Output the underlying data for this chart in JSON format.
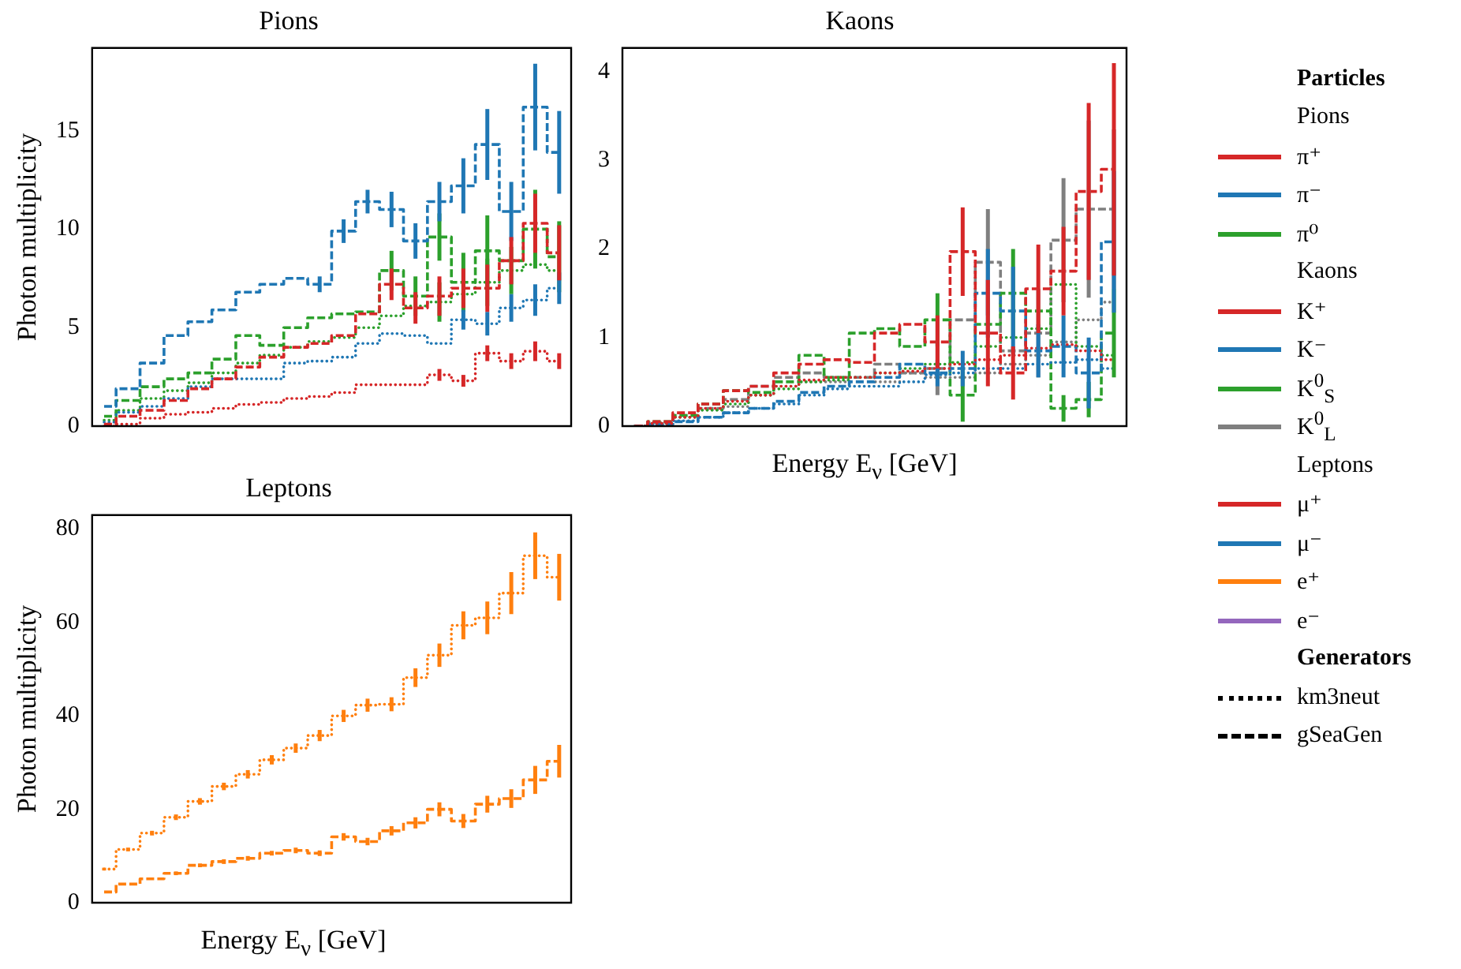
{
  "chart_data": [
    {
      "type": "step",
      "title": "Pions",
      "ylabel": "Photon multiplicity",
      "legend_title": "Particles",
      "legend": "right",
      "tick_labels": "y",
      "categories": [
        null,
        null,
        null,
        null,
        null,
        null,
        null,
        null,
        null,
        null,
        null,
        null,
        null,
        null,
        null,
        null,
        null,
        null,
        null,
        null
      ],
      "ylim": [
        0,
        19.2
      ],
      "yticks": [
        0,
        5,
        10,
        15
      ],
      "series": [
        {
          "name": "π⁺",
          "color": "#d62728",
          "line_style": "dotted",
          "values": [
            0,
            0.1,
            0.4,
            0.6,
            0.7,
            0.9,
            1.1,
            1.2,
            1.4,
            1.5,
            1.7,
            2.1,
            2.1,
            2.1,
            2.6,
            2.3,
            3.7,
            3.3,
            3.8,
            3.3
          ],
          "errors": [
            null,
            null,
            null,
            null,
            null,
            null,
            null,
            null,
            null,
            null,
            null,
            null,
            null,
            null,
            0.3,
            0.3,
            0.4,
            0.4,
            0.5,
            0.4
          ]
        },
        {
          "color": "#d62728",
          "line_style": "dashed",
          "values": [
            0.1,
            0.5,
            0.8,
            1.3,
            1.9,
            2.4,
            3.0,
            3.5,
            4.0,
            4.2,
            4.6,
            5.7,
            7.2,
            6.0,
            6.6,
            7.0,
            7.0,
            8.4,
            10.3,
            8.8
          ],
          "errors": [
            null,
            null,
            null,
            null,
            null,
            null,
            null,
            null,
            null,
            null,
            null,
            null,
            0.8,
            0.8,
            1.0,
            1.0,
            1.2,
            1.2,
            1.5,
            1.4
          ]
        },
        {
          "name": "π⁻",
          "color": "#1f77b4",
          "line_style": "dotted",
          "values": [
            0.2,
            0.7,
            1.0,
            1.4,
            2.0,
            2.4,
            2.4,
            2.4,
            3.2,
            3.3,
            3.5,
            4.2,
            4.7,
            4.6,
            4.2,
            5.4,
            5.2,
            6.0,
            6.4,
            7.0
          ],
          "errors": [
            null,
            null,
            null,
            null,
            null,
            null,
            null,
            null,
            null,
            null,
            null,
            null,
            null,
            null,
            null,
            0.5,
            0.6,
            0.7,
            0.8,
            0.8
          ]
        },
        {
          "color": "#1f77b4",
          "line_style": "dashed",
          "values": [
            1.0,
            1.9,
            3.2,
            4.6,
            5.3,
            5.9,
            6.8,
            7.2,
            7.5,
            7.2,
            9.9,
            11.4,
            11.0,
            9.4,
            11.4,
            12.2,
            14.3,
            10.9,
            16.2,
            13.9
          ],
          "errors": [
            null,
            null,
            null,
            null,
            null,
            null,
            null,
            null,
            null,
            0.4,
            0.6,
            0.6,
            0.9,
            0.9,
            1.0,
            1.4,
            1.8,
            1.5,
            2.2,
            2.1
          ]
        },
        {
          "name": "π⁰",
          "color": "#2ca02c",
          "line_style": "dotted",
          "values": [
            0.3,
            0.8,
            1.4,
            1.8,
            2.2,
            2.7,
            3.2,
            3.6,
            4.0,
            4.3,
            4.5,
            5.0,
            5.6,
            6.1,
            6.3,
            6.7,
            7.3,
            7.9,
            8.2,
            7.9
          ],
          "errors": [
            null,
            null,
            null,
            null,
            null,
            null,
            null,
            null,
            null,
            null,
            null,
            null,
            null,
            null,
            1.0,
            null,
            1.2,
            1.2,
            null,
            null
          ]
        },
        {
          "color": "#2ca02c",
          "line_style": "dashed",
          "values": [
            0.5,
            1.3,
            2.0,
            2.4,
            2.7,
            3.4,
            4.6,
            4.1,
            5.0,
            5.5,
            5.7,
            5.8,
            7.9,
            6.6,
            9.6,
            7.3,
            8.9,
            8.4,
            10.0,
            8.6
          ],
          "errors": [
            null,
            null,
            null,
            null,
            null,
            null,
            null,
            null,
            null,
            null,
            null,
            null,
            1.0,
            1.0,
            1.2,
            1.5,
            1.8,
            null,
            2.0,
            1.8
          ]
        }
      ]
    },
    {
      "type": "step",
      "title": "Kaons",
      "xlabel": "Energy E$_{ν}$ [GeV]",
      "legend": "right",
      "tick_labels": "y",
      "categories": [
        null,
        null,
        null,
        null,
        null,
        null,
        null,
        null,
        null,
        null,
        null,
        null,
        null,
        null,
        null,
        null,
        null,
        null,
        null,
        null
      ],
      "ylim": [
        0,
        4.27
      ],
      "yticks": [
        0,
        1,
        2,
        3,
        4
      ],
      "series": [
        {
          "name": "K⁺",
          "color": "#d62728",
          "line_style": "dotted",
          "values": [
            0.0,
            0.03,
            0.1,
            0.2,
            0.28,
            0.35,
            0.45,
            0.52,
            0.55,
            0.55,
            0.6,
            0.62,
            0.65,
            0.7,
            0.75,
            0.8,
            0.88,
            0.92,
            0.85,
            0.75
          ]
        },
        {
          "color": "#d62728",
          "line_style": "dashed",
          "values": [
            0.0,
            0.05,
            0.15,
            0.25,
            0.4,
            0.45,
            0.6,
            0.7,
            0.75,
            0.72,
            1.05,
            1.15,
            0.95,
            1.97,
            1.05,
            0.6,
            1.55,
            1.75,
            2.65,
            2.9
          ],
          "errors": [
            null,
            null,
            null,
            null,
            null,
            null,
            null,
            null,
            null,
            null,
            null,
            null,
            0.3,
            0.5,
            0.6,
            0.3,
            0.5,
            0.5,
            1.0,
            1.2
          ]
        },
        {
          "name": "K⁻",
          "color": "#1f77b4",
          "line_style": "dotted",
          "values": [
            0,
            0.02,
            0.06,
            0.1,
            0.15,
            0.2,
            0.25,
            0.35,
            0.42,
            0.45,
            0.45,
            0.5,
            0.58,
            0.6,
            0.65,
            0.65,
            0.7,
            0.72,
            0.75,
            0.65
          ]
        },
        {
          "color": "#1f77b4",
          "line_style": "dashed",
          "values": [
            0,
            0.02,
            0.05,
            0.1,
            0.15,
            0.2,
            0.28,
            0.38,
            0.45,
            0.5,
            0.55,
            0.7,
            0.6,
            0.65,
            1.5,
            1.3,
            0.85,
            0.9,
            0.6,
            2.08
          ],
          "errors": [
            null,
            null,
            null,
            null,
            null,
            null,
            null,
            null,
            null,
            null,
            null,
            null,
            0.15,
            0.2,
            0.5,
            0.5,
            0.3,
            0.35,
            0.4,
            0.8
          ]
        },
        {
          "name": "K$^{0}$$_{S}$",
          "color": "#2ca02c",
          "line_style": "dotted",
          "values": [
            0,
            0.03,
            0.1,
            0.18,
            0.25,
            0.35,
            0.42,
            0.5,
            0.52,
            0.55,
            0.6,
            0.65,
            0.7,
            0.72,
            0.9,
            1.0,
            1.1,
            1.6,
            0.9,
            0.8
          ]
        },
        {
          "color": "#2ca02c",
          "line_style": "dashed",
          "values": [
            0,
            0.05,
            0.12,
            0.25,
            0.4,
            0.38,
            0.5,
            0.8,
            0.55,
            1.05,
            1.1,
            0.9,
            1.2,
            0.35,
            1.15,
            1.5,
            1.3,
            0.2,
            0.3,
            1.05
          ],
          "errors": [
            null,
            null,
            null,
            null,
            null,
            null,
            null,
            null,
            null,
            null,
            null,
            null,
            0.3,
            0.3,
            null,
            0.5,
            null,
            0.15,
            0.2,
            0.5
          ]
        },
        {
          "name": "K$^{0}$$_{L}$",
          "color": "#7f7f7f",
          "line_style": "dotted",
          "values": [
            0,
            0.03,
            0.1,
            0.18,
            0.22,
            0.35,
            0.45,
            0.5,
            0.5,
            0.55,
            0.5,
            0.6,
            0.55,
            0.55,
            0.6,
            0.7,
            0.8,
            0.95,
            1.2,
            1.4
          ]
        },
        {
          "color": "#7f7f7f",
          "line_style": "dashed",
          "values": [
            0,
            0.04,
            0.12,
            0.2,
            0.3,
            0.45,
            0.55,
            0.6,
            0.55,
            0.55,
            0.7,
            0.6,
            0.65,
            1.2,
            1.85,
            0.85,
            1.05,
            2.1,
            2.45,
            2.45
          ],
          "errors": [
            null,
            null,
            null,
            null,
            null,
            null,
            null,
            null,
            null,
            null,
            null,
            null,
            0.3,
            null,
            0.6,
            null,
            0.5,
            0.7,
            1.0,
            0.9
          ]
        }
      ]
    },
    {
      "type": "step",
      "title": "Leptons",
      "xlabel": "Energy E$_{ν}$ [GeV]",
      "ylabel": "Photon multiplicity",
      "legend": "right",
      "tick_labels": "y",
      "annotations": [
        "Generators",
        "km3neut",
        "gSeaGen"
      ],
      "categories": [
        null,
        null,
        null,
        null,
        null,
        null,
        null,
        null,
        null,
        null,
        null,
        null,
        null,
        null,
        null,
        null,
        null,
        null,
        null,
        null
      ],
      "ylim": [
        0,
        83
      ],
      "yticks": [
        0,
        20,
        40,
        60,
        80
      ],
      "series": [
        {
          "name": "μ⁺",
          "color": "#d62728",
          "line_style": "dotted",
          "values": [
            null,
            null,
            null,
            null,
            null,
            null,
            null,
            null,
            null,
            null,
            null,
            null,
            null,
            null,
            null,
            null,
            null,
            null,
            null,
            null
          ]
        },
        {
          "name": "μ⁻",
          "color": "#1f77b4",
          "line_style": "dotted",
          "values": [
            null,
            null,
            null,
            null,
            null,
            null,
            null,
            null,
            null,
            null,
            null,
            null,
            null,
            null,
            null,
            null,
            null,
            null,
            null,
            null
          ]
        },
        {
          "name": "e⁺",
          "color": "#ff7f0e",
          "line_style": "dotted",
          "values": [
            7.2,
            11.4,
            14.9,
            18.3,
            21.7,
            24.9,
            27.5,
            30.6,
            33.1,
            35.8,
            40.0,
            42.3,
            42.5,
            48.2,
            53.0,
            59.4,
            61.0,
            66.3,
            74.3,
            69.7
          ],
          "errors": [
            0.3,
            0.4,
            0.5,
            0.6,
            0.7,
            0.8,
            0.9,
            1,
            1,
            1.2,
            1.3,
            1.4,
            1.5,
            2,
            2.5,
            3,
            3.5,
            4.5,
            5,
            5
          ]
        },
        {
          "color": "#ff7f0e",
          "line_style": "dashed",
          "values": [
            2.3,
            4.0,
            5.1,
            6.3,
            8.0,
            8.8,
            9.5,
            10.6,
            11.2,
            10.6,
            14.1,
            13.1,
            15.4,
            17.1,
            20.0,
            17.5,
            21.1,
            22.3,
            26.3,
            30.3
          ],
          "errors": [
            null,
            null,
            null,
            0.4,
            0.4,
            0.5,
            0.5,
            0.5,
            0.6,
            0.6,
            0.8,
            0.8,
            1,
            1.2,
            1.5,
            1.5,
            1.8,
            2,
            3,
            3.5
          ]
        },
        {
          "name": "e⁻",
          "color": "#9467bd",
          "line_style": "dotted",
          "values": [
            null,
            null,
            null,
            null,
            null,
            null,
            null,
            null,
            null,
            null,
            null,
            null,
            null,
            null,
            null,
            null,
            null,
            null,
            null,
            null
          ]
        }
      ]
    }
  ]
}
